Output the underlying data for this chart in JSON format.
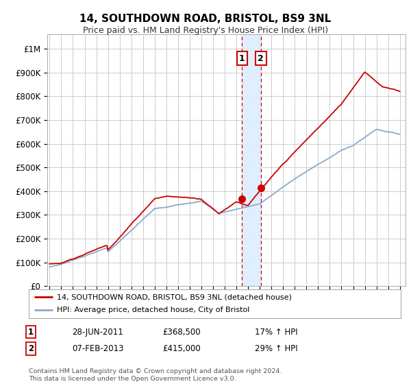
{
  "title": "14, SOUTHDOWN ROAD, BRISTOL, BS9 3NL",
  "subtitle": "Price paid vs. HM Land Registry's House Price Index (HPI)",
  "ylabel_ticks": [
    "£0",
    "£100K",
    "£200K",
    "£300K",
    "£400K",
    "£500K",
    "£600K",
    "£700K",
    "£800K",
    "£900K",
    "£1M"
  ],
  "ytick_vals": [
    0,
    100000,
    200000,
    300000,
    400000,
    500000,
    600000,
    700000,
    800000,
    900000,
    1000000
  ],
  "ylim": [
    0,
    1060000
  ],
  "xlim_start": 1994.8,
  "xlim_end": 2025.5,
  "sale1_date": 2011.49,
  "sale1_price": 368500,
  "sale2_date": 2013.09,
  "sale2_price": 415000,
  "red_line_color": "#cc0000",
  "blue_line_color": "#88aacc",
  "shade_color": "#ddeeff",
  "vline_color": "#cc0000",
  "box_color": "#cc0000",
  "legend_line1": "14, SOUTHDOWN ROAD, BRISTOL, BS9 3NL (detached house)",
  "legend_line2": "HPI: Average price, detached house, City of Bristol",
  "table_row1": [
    "1",
    "28-JUN-2011",
    "£368,500",
    "17% ↑ HPI"
  ],
  "table_row2": [
    "2",
    "07-FEB-2013",
    "£415,000",
    "29% ↑ HPI"
  ],
  "footnote": "Contains HM Land Registry data © Crown copyright and database right 2024.\nThis data is licensed under the Open Government Licence v3.0.",
  "background_color": "#ffffff",
  "grid_color": "#cccccc",
  "title_fontsize": 11,
  "subtitle_fontsize": 9
}
